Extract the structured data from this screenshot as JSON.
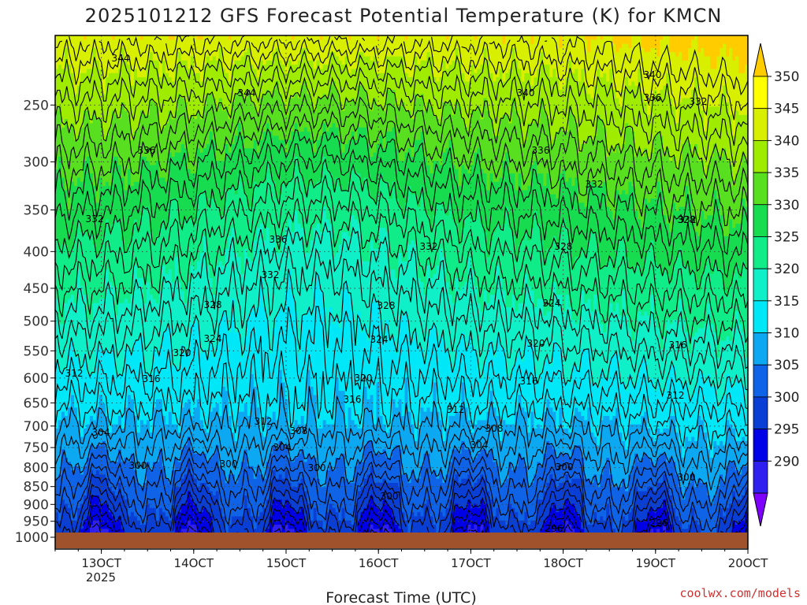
{
  "chart_data": {
    "type": "heatmap",
    "title": "2025101212 GFS Forecast Potential Temperature (K) for KMCN",
    "xlabel": "Forecast Time (UTC)",
    "ylabel": "",
    "credit": "coolwx.com/models",
    "x_ticks": [
      "13OCT",
      "14OCT",
      "15OCT",
      "16OCT",
      "17OCT",
      "18OCT",
      "19OCT",
      "20OCT"
    ],
    "x_year_label": "2025",
    "x_range_days": [
      12.5,
      20.0
    ],
    "y_ticks": [
      "250",
      "300",
      "350",
      "400",
      "450",
      "500",
      "550",
      "600",
      "650",
      "700",
      "750",
      "800",
      "850",
      "900",
      "950",
      "1000"
    ],
    "y_range_hpa": [
      200,
      1000
    ],
    "colorbar": {
      "labels": [
        "350",
        "345",
        "340",
        "335",
        "330",
        "325",
        "320",
        "315",
        "310",
        "305",
        "300",
        "295",
        "290"
      ],
      "colors": [
        "#7f00ff",
        "#3020f0",
        "#0000e6",
        "#0a3fd6",
        "#0f63e6",
        "#0ca8f2",
        "#00e8f8",
        "#10f0c8",
        "#10ec88",
        "#18dc50",
        "#58e020",
        "#a0ec00",
        "#d8f000",
        "#ffff00",
        "#ffcc00"
      ],
      "range_k": [
        290,
        350
      ]
    },
    "contour_labels": [
      "344",
      "344",
      "340",
      "340",
      "336",
      "332",
      "336",
      "336",
      "332",
      "332",
      "328",
      "332",
      "336",
      "332",
      "332",
      "328",
      "324",
      "328",
      "328",
      "324",
      "324",
      "320",
      "320",
      "316",
      "320",
      "316",
      "312",
      "316",
      "316",
      "312",
      "312",
      "312",
      "308",
      "304",
      "308",
      "304",
      "304",
      "300",
      "300",
      "300",
      "300",
      "300",
      "300",
      "296",
      "296"
    ],
    "surface_color": "#a0522d",
    "isotherms_k": [
      292,
      294,
      296,
      298,
      300,
      302,
      304,
      306,
      308,
      310,
      312,
      314,
      316,
      318,
      320,
      322,
      324,
      326,
      328,
      330,
      332,
      334,
      336,
      338,
      340,
      342,
      344,
      346,
      348
    ]
  }
}
